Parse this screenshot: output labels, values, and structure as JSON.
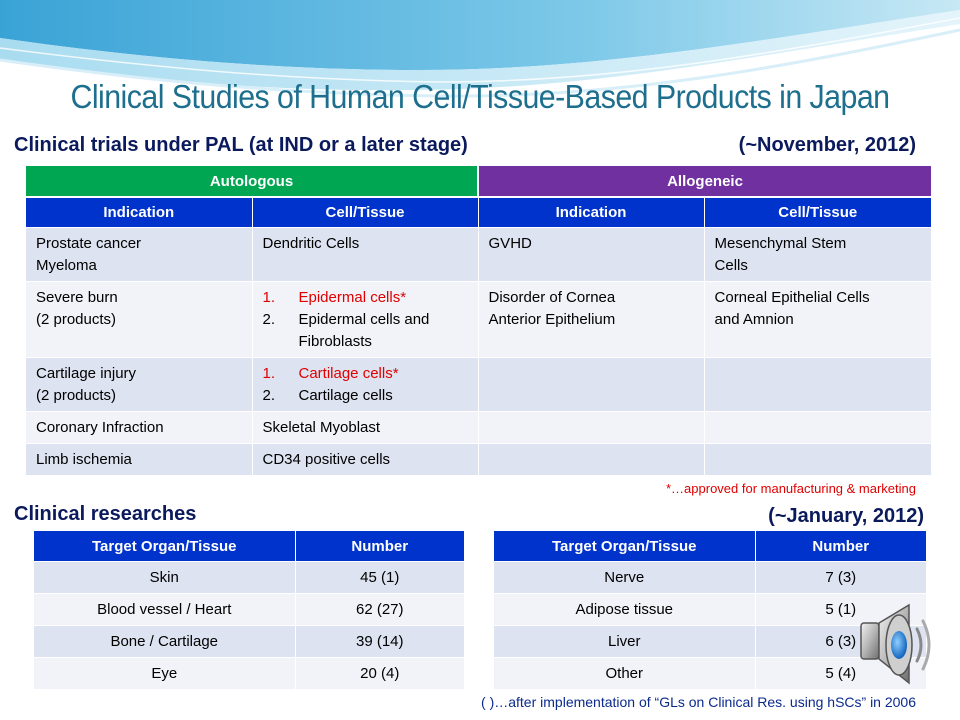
{
  "title": "Clinical Studies of Human Cell/Tissue-Based Products in Japan",
  "trials": {
    "heading": "Clinical trials under PAL (at IND or a later stage)",
    "date": "(~November, 2012)",
    "groups": [
      "Autologous",
      "Allogeneic"
    ],
    "columns": [
      "Indication",
      "Cell/Tissue",
      "Indication",
      "Cell/Tissue"
    ],
    "rows": [
      {
        "auto_indication": [
          "Prostate cancer",
          "Myeloma"
        ],
        "auto_cells": [
          {
            "text": "Dendritic Cells"
          }
        ],
        "allo_indication": [
          "GVHD"
        ],
        "allo_cells": [
          "Mesenchymal Stem",
          "Cells"
        ]
      },
      {
        "auto_indication": [
          "Severe burn",
          "(2 products)"
        ],
        "auto_cells": [
          {
            "num": "1.",
            "text": "Epidermal cells*",
            "approved": true
          },
          {
            "num": "2.",
            "text": "Epidermal cells and Fibroblasts"
          }
        ],
        "allo_indication": [
          "Disorder of  Cornea",
          "Anterior Epithelium"
        ],
        "allo_cells": [
          "Corneal Epithelial Cells",
          "and Amnion"
        ]
      },
      {
        "auto_indication": [
          "Cartilage injury",
          "(2 products)"
        ],
        "auto_cells": [
          {
            "num": "1.",
            "text": "Cartilage cells*",
            "approved": true
          },
          {
            "num": "2.",
            "text": "Cartilage cells"
          }
        ],
        "allo_indication": [],
        "allo_cells": []
      },
      {
        "auto_indication": [
          "Coronary Infraction"
        ],
        "auto_cells": [
          {
            "text": "Skeletal Myoblast"
          }
        ],
        "allo_indication": [],
        "allo_cells": []
      },
      {
        "auto_indication": [
          "Limb ischemia"
        ],
        "auto_cells": [
          {
            "text": "CD34 positive cells"
          }
        ],
        "allo_indication": [],
        "allo_cells": []
      }
    ],
    "note": "*…approved for manufacturing  & marketing"
  },
  "research": {
    "heading": "Clinical researches",
    "date": "(~January, 2012)",
    "columns": [
      "Target Organ/Tissue",
      "Number"
    ],
    "left": [
      {
        "organ": "Skin",
        "number": "45 (1)"
      },
      {
        "organ": "Blood vessel / Heart",
        "number": "62 (27)"
      },
      {
        "organ": "Bone / Cartilage",
        "number": "39 (14)"
      },
      {
        "organ": "Eye",
        "number": "20 (4)"
      }
    ],
    "right": [
      {
        "organ": "Nerve",
        "number": "7 (3)"
      },
      {
        "organ": "Adipose tissue",
        "number": "5 (1)"
      },
      {
        "organ": "Liver",
        "number": "6 (3)"
      },
      {
        "organ": "Other",
        "number": "5 (4)"
      }
    ],
    "footnote": "(  )…after implementation of “GLs on Clinical Res. using hSCs” in 2006"
  },
  "colors": {
    "autologous": "#00a651",
    "allogeneic": "#7030a0",
    "header_blue": "#0033cc",
    "approved_red": "#e00000",
    "title_teal": "#1e6f8e"
  },
  "icons": {
    "speaker": "speaker-icon"
  }
}
